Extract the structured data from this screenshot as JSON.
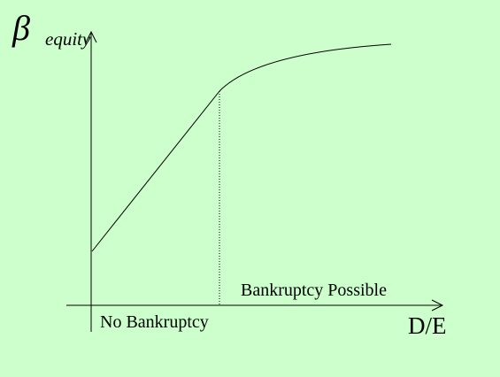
{
  "axes": {
    "y_symbol": "β",
    "y_subscript": "equity",
    "x_label": "D/E"
  },
  "regions": {
    "left": "No Bankruptcy",
    "right": "Bankruptcy Possible"
  },
  "colors": {
    "background": "#ccffcc",
    "ink": "#000000"
  }
}
